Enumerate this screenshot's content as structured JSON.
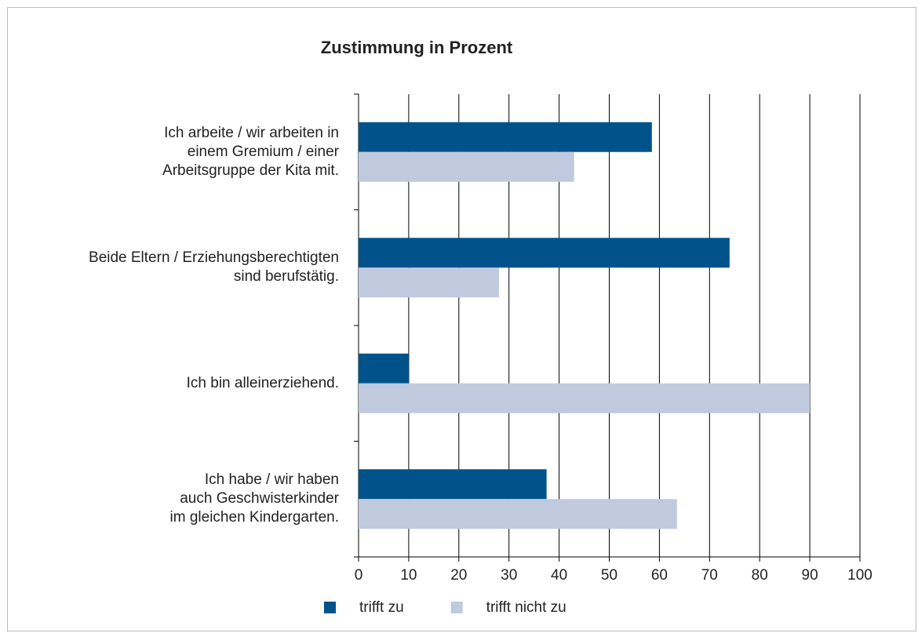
{
  "chart_data": {
    "type": "bar",
    "orientation": "horizontal",
    "title": "Zustimmung in Prozent",
    "categories": [
      "Ich arbeite / wir arbeiten in\neinem Gremium / einer\nArbeitsgruppe der Kita mit.",
      "Beide Eltern / Erziehungsberechtigten\nsind berufstätig.",
      "Ich bin alleinerziehend.",
      "Ich habe / wir haben\nauch Geschwisterkinder\nim gleichen Kindergarten."
    ],
    "series": [
      {
        "name": "trifft zu",
        "color": "#00538a",
        "values": [
          58.5,
          74,
          10,
          37.5
        ]
      },
      {
        "name": "trifft nicht zu",
        "color": "#bfcadf",
        "values": [
          43,
          28,
          90,
          63.5
        ]
      }
    ],
    "xlim": [
      0,
      100
    ],
    "xticks": [
      0,
      10,
      20,
      30,
      40,
      50,
      60,
      70,
      80,
      90,
      100
    ],
    "grid": true,
    "legend": "bottom"
  }
}
